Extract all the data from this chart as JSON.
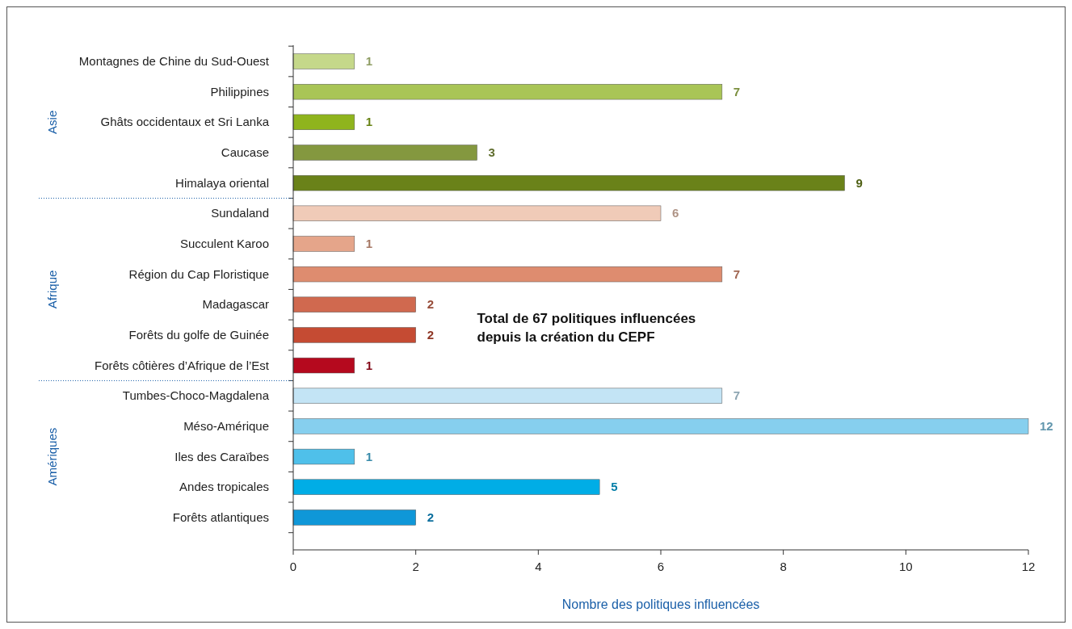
{
  "chart_data": {
    "type": "bar",
    "orientation": "horizontal",
    "xlabel": "Nombre des politiques influencées",
    "categories": [
      "Montagnes de Chine du Sud-Ouest",
      "Philippines",
      "Ghâts occidentaux et Sri Lanka",
      "Caucase",
      "Himalaya oriental",
      "Sundaland",
      "Succulent Karoo",
      "Région du Cap Floristique",
      "Madagascar",
      "Forêts du golfe de Guinée",
      "Forêts côtières d’Afrique de l’Est",
      "Tumbes-Choco-Magdalena",
      "Méso-Amérique",
      "Iles des Caraïbes",
      "Andes tropicales",
      "Forêts atlantiques"
    ],
    "values": [
      1,
      7,
      1,
      3,
      9,
      6,
      1,
      7,
      2,
      2,
      1,
      7,
      12,
      1,
      5,
      2
    ],
    "colors": [
      "#c5d88a",
      "#a9c556",
      "#8fb41d",
      "#84983f",
      "#6a8219",
      "#f0cbb8",
      "#e5a58a",
      "#de8c6f",
      "#d0694f",
      "#c54b33",
      "#b5091e",
      "#c3e4f5",
      "#86cfee",
      "#4fc0ea",
      "#00ade6",
      "#0f97d8"
    ],
    "xlim": [
      0,
      12
    ],
    "xticks": [
      0,
      2,
      4,
      6,
      8,
      10,
      12
    ],
    "data_labels": true,
    "grid": false,
    "annotations": [
      "Asie",
      "Afrique",
      "Amériques",
      "Total de 67 politiques influencées\ndepuis la création du CEPF"
    ]
  }
}
